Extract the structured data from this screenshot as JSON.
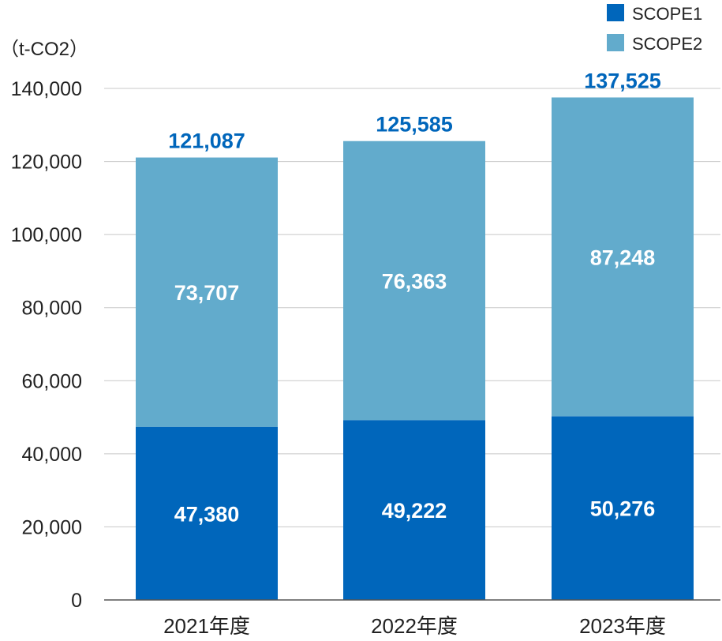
{
  "chart_data": {
    "type": "bar",
    "stacked": true,
    "title": "",
    "ylabel": "（t-CO2）",
    "xlabel": "",
    "categories": [
      "2021年度",
      "2022年度",
      "2023年度"
    ],
    "series": [
      {
        "name": "SCOPE1",
        "values": [
          47380,
          49222,
          50276
        ],
        "labels": [
          "47,380",
          "49,222",
          "50,276"
        ],
        "color": "#0066bb"
      },
      {
        "name": "SCOPE2",
        "values": [
          73707,
          76363,
          87248
        ],
        "labels": [
          "73,707",
          "76,363",
          "87,248"
        ],
        "color": "#62abcc"
      }
    ],
    "totals": [
      121087,
      125585,
      137525
    ],
    "total_labels": [
      "121,087",
      "125,585",
      "137,525"
    ],
    "total_label_color": "#0066bb",
    "ylim": [
      0,
      140000
    ],
    "yticks": [
      0,
      20000,
      40000,
      60000,
      80000,
      100000,
      120000,
      140000
    ],
    "ytick_labels": [
      "0",
      "20,000",
      "40,000",
      "60,000",
      "80,000",
      "100,000",
      "120,000",
      "140,000"
    ],
    "grid": true,
    "legend_position": "top-right"
  }
}
